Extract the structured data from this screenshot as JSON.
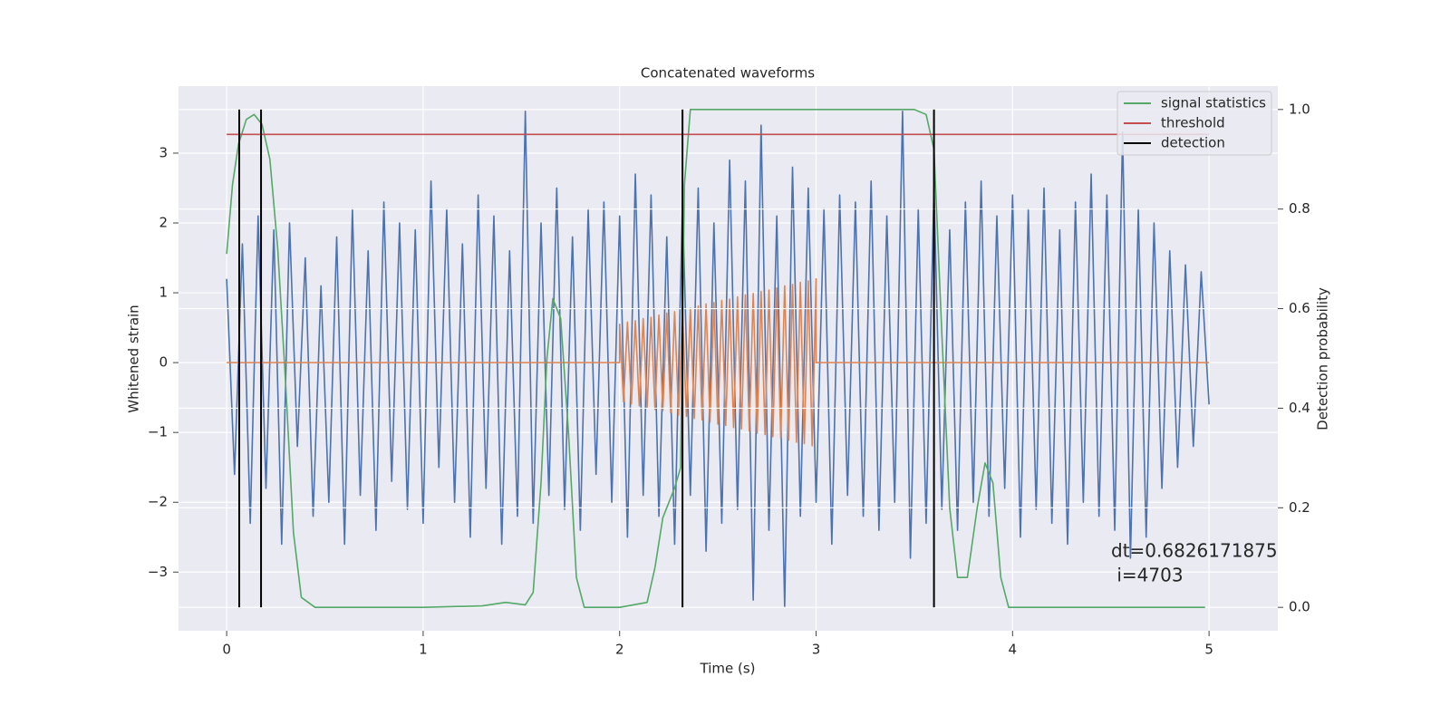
{
  "chart_data": {
    "type": "line",
    "title": "Concatenated waveforms",
    "xlabel": "Time (s)",
    "ylabel": "Whitened strain",
    "y2label": "Detection probability",
    "xlim": [
      -0.245,
      5.35
    ],
    "ylim": [
      -3.84,
      3.96
    ],
    "y2lim": [
      -0.047,
      1.047
    ],
    "xticks": [
      0,
      1,
      2,
      3,
      4,
      5
    ],
    "yticks": [
      {
        "value": -3,
        "label": "−3"
      },
      {
        "value": -2,
        "label": "−2"
      },
      {
        "value": -1,
        "label": "−1"
      },
      0,
      1,
      2,
      3
    ],
    "y2ticks": [
      {
        "value": 0,
        "label": "0.0"
      },
      {
        "value": 0.2,
        "label": "0.2"
      },
      {
        "value": 0.4,
        "label": "0.4"
      },
      {
        "value": 0.6,
        "label": "0.6"
      },
      {
        "value": 0.8,
        "label": "0.8"
      },
      {
        "value": 1,
        "label": "1.0"
      }
    ],
    "grid": true,
    "legend": "upper right",
    "annotation": [
      "dt=0.6826171875",
      " i=4703"
    ],
    "series": [
      {
        "color": "#4c72b0",
        "x": [
          0,
          0.04,
          0.08,
          0.12,
          0.16,
          0.2,
          0.24,
          0.28,
          0.32,
          0.36,
          0.4,
          0.44,
          0.48,
          0.52,
          0.56,
          0.6,
          0.64,
          0.68,
          0.72,
          0.76,
          0.8,
          0.84,
          0.88,
          0.92,
          0.96,
          1,
          1.04,
          1.08,
          1.12,
          1.16,
          1.2,
          1.24,
          1.28,
          1.32,
          1.36,
          1.4,
          1.44,
          1.48,
          1.52,
          1.56,
          1.6,
          1.64,
          1.68,
          1.72,
          1.76,
          1.8,
          1.84,
          1.88,
          1.92,
          1.96,
          2,
          2.04,
          2.08,
          2.12,
          2.16,
          2.2,
          2.24,
          2.28,
          2.32,
          2.36,
          2.4,
          2.44,
          2.48,
          2.52,
          2.56,
          2.6,
          2.64,
          2.68,
          2.72,
          2.76,
          2.8,
          2.84,
          2.88,
          2.92,
          2.96,
          3,
          3.04,
          3.08,
          3.12,
          3.16,
          3.2,
          3.24,
          3.28,
          3.32,
          3.36,
          3.4,
          3.44,
          3.48,
          3.52,
          3.56,
          3.6,
          3.64,
          3.68,
          3.72,
          3.76,
          3.8,
          3.84,
          3.88,
          3.92,
          3.96,
          4,
          4.04,
          4.08,
          4.12,
          4.16,
          4.2,
          4.24,
          4.28,
          4.32,
          4.36,
          4.4,
          4.44,
          4.48,
          4.52,
          4.56,
          4.6,
          4.64,
          4.68,
          4.72,
          4.76,
          4.8,
          4.84,
          4.88,
          4.92,
          4.96,
          5
        ],
        "values": [
          1.2,
          -1.6,
          1.7,
          -2.3,
          2.1,
          -1.8,
          1.9,
          -2.6,
          2.0,
          -1.2,
          1.5,
          -2.2,
          1.1,
          -2.0,
          1.8,
          -2.6,
          2.2,
          -1.9,
          1.6,
          -2.4,
          2.3,
          -1.7,
          2.0,
          -2.1,
          1.9,
          -2.3,
          2.6,
          -1.5,
          2.2,
          -2.0,
          1.7,
          -2.5,
          2.4,
          -1.8,
          2.1,
          -2.6,
          1.6,
          -2.2,
          3.6,
          -2.3,
          2.0,
          -1.9,
          2.5,
          -2.1,
          1.8,
          -2.4,
          2.2,
          -1.6,
          2.3,
          -2.0,
          2.1,
          -2.5,
          2.7,
          -1.9,
          2.4,
          -2.2,
          1.8,
          -2.6,
          2.3,
          -1.9,
          2.5,
          -2.7,
          2.0,
          -2.3,
          2.9,
          -2.1,
          2.6,
          -3.4,
          3.4,
          -2.4,
          2.1,
          -3.5,
          2.8,
          -2.2,
          2.5,
          -2.0,
          2.2,
          -2.6,
          2.4,
          -1.9,
          2.3,
          -2.2,
          2.6,
          -2.4,
          2.1,
          -2.0,
          3.6,
          -2.8,
          2.2,
          -2.3,
          2.5,
          -2.1,
          1.9,
          -2.4,
          2.3,
          -2.0,
          2.6,
          -2.2,
          2.1,
          -1.8,
          2.4,
          -2.5,
          2.2,
          -2.1,
          2.5,
          -2.3,
          1.9,
          -2.6,
          2.3,
          -2.0,
          2.7,
          -2.2,
          2.4,
          -2.4,
          3.3,
          -2.8,
          2.2,
          -2.5,
          2.0,
          -1.8,
          1.6,
          -1.5,
          1.4,
          -1.2,
          1.3,
          -0.6
        ]
      },
      {
        "color": "#dd8452",
        "x": [
          0,
          2,
          2,
          2.02,
          2.04,
          2.06,
          2.08,
          2.1,
          2.12,
          2.14,
          2.16,
          2.18,
          2.2,
          2.22,
          2.24,
          2.26,
          2.28,
          2.3,
          2.32,
          2.34,
          2.36,
          2.38,
          2.4,
          2.42,
          2.44,
          2.46,
          2.48,
          2.5,
          2.52,
          2.54,
          2.56,
          2.58,
          2.6,
          2.62,
          2.64,
          2.66,
          2.68,
          2.7,
          2.72,
          2.74,
          2.76,
          2.78,
          2.8,
          2.82,
          2.84,
          2.86,
          2.88,
          2.9,
          2.92,
          2.94,
          2.96,
          2.98,
          3,
          3,
          5
        ],
        "values": [
          0,
          0,
          0.55,
          -0.56,
          0.58,
          -0.59,
          0.6,
          -0.62,
          0.63,
          -0.64,
          0.65,
          -0.67,
          0.68,
          -0.69,
          0.71,
          -0.72,
          0.73,
          -0.75,
          0.76,
          -0.77,
          0.78,
          -0.8,
          0.81,
          -0.82,
          0.84,
          -0.85,
          0.86,
          -0.88,
          0.89,
          -0.9,
          0.91,
          -0.93,
          0.94,
          -0.95,
          0.97,
          -0.98,
          0.99,
          -1.01,
          1.02,
          -1.03,
          1.04,
          -1.06,
          1.07,
          -1.08,
          1.1,
          -1.11,
          1.12,
          -1.14,
          1.15,
          -1.16,
          1.17,
          -1.19,
          1.2,
          0,
          0
        ]
      },
      {
        "name": "signal statistics",
        "color": "#55a868",
        "axis": "y2",
        "x": [
          0,
          0.03,
          0.06,
          0.1,
          0.14,
          0.18,
          0.22,
          0.26,
          0.3,
          0.34,
          0.38,
          0.45,
          1.0,
          1.3,
          1.42,
          1.52,
          1.56,
          1.6,
          1.63,
          1.66,
          1.7,
          1.74,
          1.78,
          1.82,
          2.0,
          2.14,
          2.18,
          2.22,
          2.28,
          2.31,
          2.33,
          2.36,
          2.5,
          3.5,
          3.56,
          3.6,
          3.64,
          3.68,
          3.72,
          3.77,
          3.82,
          3.86,
          3.9,
          3.94,
          3.98,
          4.98
        ],
        "values": [
          0.71,
          0.85,
          0.93,
          0.98,
          0.99,
          0.97,
          0.9,
          0.72,
          0.45,
          0.15,
          0.02,
          0,
          0,
          0.003,
          0.01,
          0.005,
          0.03,
          0.25,
          0.5,
          0.62,
          0.58,
          0.35,
          0.06,
          0,
          0,
          0.01,
          0.08,
          0.18,
          0.24,
          0.28,
          0.85,
          1,
          1,
          1,
          0.99,
          0.92,
          0.55,
          0.2,
          0.06,
          0.06,
          0.2,
          0.29,
          0.25,
          0.06,
          0,
          0
        ]
      },
      {
        "name": "threshold",
        "color": "#c44e52",
        "axis": "y2",
        "x": [
          0,
          5
        ],
        "values": [
          0.95,
          0.95
        ]
      },
      {
        "name": "detection",
        "color": "#000000",
        "axis": "y2",
        "type": "vlines",
        "x": [
          0.064,
          0.175,
          2.32,
          3.6
        ],
        "ymin": 0,
        "ymax": 1
      }
    ]
  }
}
